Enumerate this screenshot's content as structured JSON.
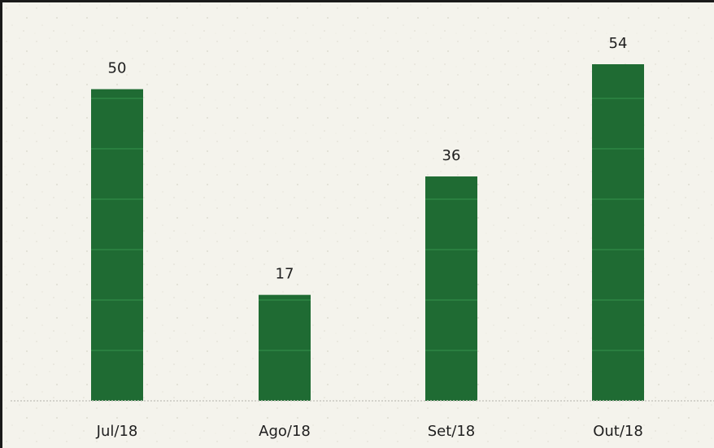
{
  "chart_data": {
    "type": "bar",
    "categories": [
      "Jul/18",
      "Ago/18",
      "Set/18",
      "Out/18"
    ],
    "values": [
      50,
      17,
      36,
      54
    ],
    "data_labels": [
      "50",
      "17",
      "36",
      "54"
    ],
    "title": "",
    "xlabel": "",
    "ylabel": "",
    "ylim": [
      0,
      60
    ],
    "grid": false,
    "legend": "none",
    "colors": {
      "bar": "#1f6b33",
      "bar_stripe": "#2f8645",
      "background": "#f4f3ec",
      "axis": "#c8c8c0",
      "text": "#1e1e1e"
    }
  }
}
